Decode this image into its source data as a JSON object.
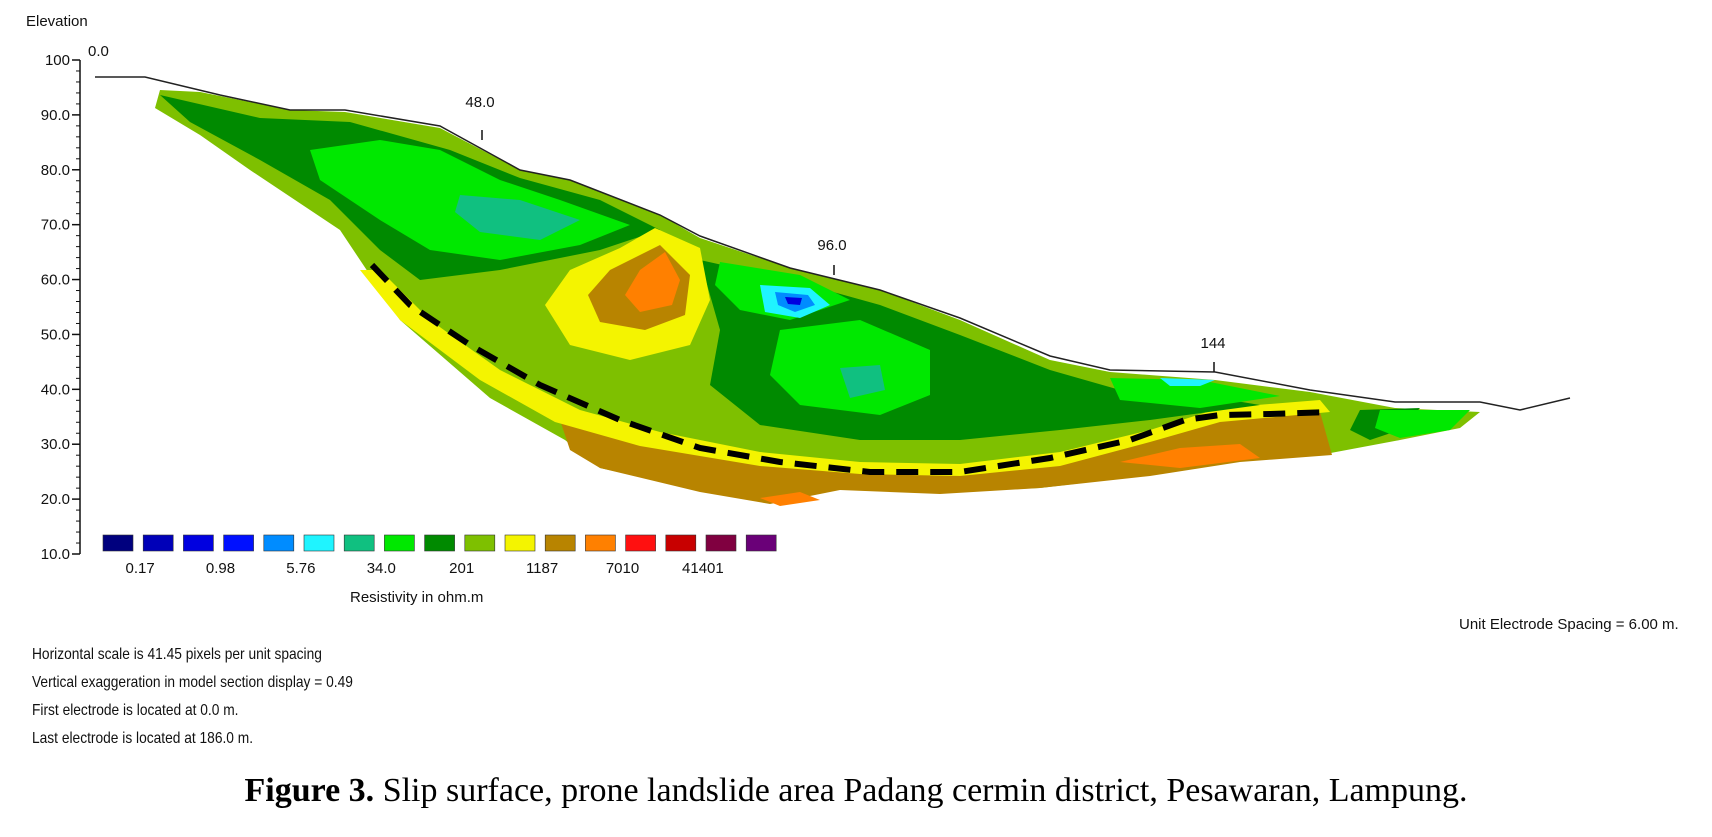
{
  "chart_data": {
    "type": "heatmap",
    "title": "",
    "ylabel": "Elevation",
    "ylim": [
      10,
      100
    ],
    "y_ticks": [
      "100",
      "90.0",
      "80.0",
      "70.0",
      "60.0",
      "50.0",
      "40.0",
      "30.0",
      "20.0",
      "10.0"
    ],
    "x_markers": [
      "0.0",
      "48.0",
      "96.0",
      "144"
    ],
    "x_unit": "m",
    "x_range": [
      0,
      186
    ],
    "topography": [
      [
        0,
        97
      ],
      [
        8,
        97
      ],
      [
        18,
        94
      ],
      [
        30,
        91
      ],
      [
        38,
        91
      ],
      [
        50,
        88
      ],
      [
        60,
        84
      ],
      [
        66,
        80
      ],
      [
        76,
        78
      ],
      [
        86,
        73
      ],
      [
        98,
        67
      ],
      [
        108,
        62
      ],
      [
        118,
        58
      ],
      [
        130,
        52
      ],
      [
        144,
        44
      ],
      [
        152,
        43
      ],
      [
        160,
        41
      ],
      [
        168,
        39
      ],
      [
        178,
        37
      ],
      [
        186,
        38
      ]
    ],
    "colorbar": {
      "label": "Resistivity in ohm.m",
      "labels": [
        "0.17",
        "0.98",
        "5.76",
        "34.0",
        "201",
        "1187",
        "7010",
        "41401"
      ],
      "colors": [
        "#00007e",
        "#0000b8",
        "#0000e0",
        "#0010ff",
        "#008cff",
        "#1ff4ff",
        "#10c080",
        "#00e800",
        "#008a00",
        "#7ec000",
        "#f4f400",
        "#b88400",
        "#ff8000",
        "#ff1010",
        "#c80000",
        "#800040",
        "#6a0078"
      ]
    },
    "annotations": [
      "Slip surface (dashed line)"
    ],
    "unit_spacing_text": "Unit Electrode Spacing = 6.00 m."
  },
  "info_lines": [
    "Horizontal scale is 41.45 pixels per unit spacing",
    "Vertical exaggeration in model section display = 0.49",
    "First electrode is located at 0.0  m.",
    "Last electrode is located at 186.0 m."
  ],
  "caption": {
    "label": "Figure 3.",
    "text": " Slip surface, prone landslide area Padang cermin district, Pesawaran, Lampung."
  }
}
